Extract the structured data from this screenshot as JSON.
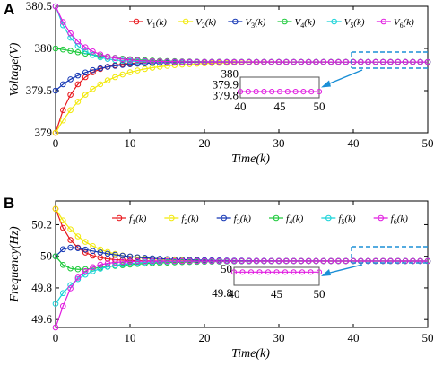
{
  "colors": [
    "#e8161b",
    "#f2e90b",
    "#1436b4",
    "#1cc93a",
    "#16d2d8",
    "#e11be0"
  ],
  "chart_data": [
    {
      "id": "A",
      "panel_label": "A",
      "type": "line",
      "xlabel": "Time(k)",
      "ylabel": "Voltage(V)",
      "xlim": [
        0,
        50
      ],
      "ylim": [
        379,
        380.5
      ],
      "xticks": [
        "0",
        "10",
        "20",
        "30",
        "40",
        "50"
      ],
      "yticks": [
        "379",
        "379.5",
        "380",
        "380.5"
      ],
      "legend_placement": "top",
      "series": [
        {
          "name": "V1(k)",
          "label_base": "V",
          "label_sub": "1",
          "label_arg": "(k)",
          "initial": 379.0,
          "final": 379.84
        },
        {
          "name": "V2(k)",
          "label_base": "V",
          "label_sub": "2",
          "label_arg": "(k)",
          "initial": 379.0,
          "final": 379.84
        },
        {
          "name": "V3(k)",
          "label_base": "V",
          "label_sub": "3",
          "label_arg": "(k)",
          "initial": 379.5,
          "final": 379.84
        },
        {
          "name": "V4(k)",
          "label_base": "V",
          "label_sub": "4",
          "label_arg": "(k)",
          "initial": 380.0,
          "final": 379.84
        },
        {
          "name": "V5(k)",
          "label_base": "V",
          "label_sub": "5",
          "label_arg": "(k)",
          "initial": 380.5,
          "final": 379.84
        },
        {
          "name": "V6(k)",
          "label_base": "V",
          "label_sub": "6",
          "label_arg": "(k)",
          "initial": 380.5,
          "final": 379.84
        }
      ],
      "inset": {
        "xlim": [
          40,
          50
        ],
        "ylim": [
          379.75,
          380.05
        ],
        "xticks": [
          "40",
          "45",
          "50"
        ],
        "yticks": [
          "380",
          "379.9",
          "379.8"
        ],
        "value": 379.84
      }
    },
    {
      "id": "B",
      "panel_label": "B",
      "type": "line",
      "xlabel": "Time(k)",
      "ylabel": "Frequency(Hz)",
      "xlim": [
        0,
        50
      ],
      "ylim": [
        49.55,
        50.35
      ],
      "xticks": [
        "0",
        "10",
        "20",
        "30",
        "40",
        "50"
      ],
      "yticks": [
        "49.6",
        "49.8",
        "50",
        "50.2"
      ],
      "legend_placement": "top",
      "series": [
        {
          "name": "f1(k)",
          "label_base": "f",
          "label_sub": "1",
          "label_arg": "(k)",
          "initial": 50.3,
          "final": 49.97
        },
        {
          "name": "f2(k)",
          "label_base": "f",
          "label_sub": "2",
          "label_arg": "(k)",
          "initial": 50.3,
          "final": 49.97
        },
        {
          "name": "f3(k)",
          "label_base": "f",
          "label_sub": "3",
          "label_arg": "(k)",
          "initial": 50.0,
          "final": 49.97
        },
        {
          "name": "f4(k)",
          "label_base": "f",
          "label_sub": "4",
          "label_arg": "(k)",
          "initial": 50.0,
          "final": 49.97
        },
        {
          "name": "f5(k)",
          "label_base": "f",
          "label_sub": "5",
          "label_arg": "(k)",
          "initial": 49.7,
          "final": 49.97
        },
        {
          "name": "f6(k)",
          "label_base": "f",
          "label_sub": "6",
          "label_arg": "(k)",
          "initial": 49.5,
          "final": 49.97
        }
      ],
      "inset": {
        "xlim": [
          40,
          50
        ],
        "ylim": [
          49.75,
          50.05
        ],
        "xticks": [
          "40",
          "45",
          "50"
        ],
        "yticks": [
          "50",
          "49.8"
        ],
        "value": 49.97
      }
    }
  ]
}
